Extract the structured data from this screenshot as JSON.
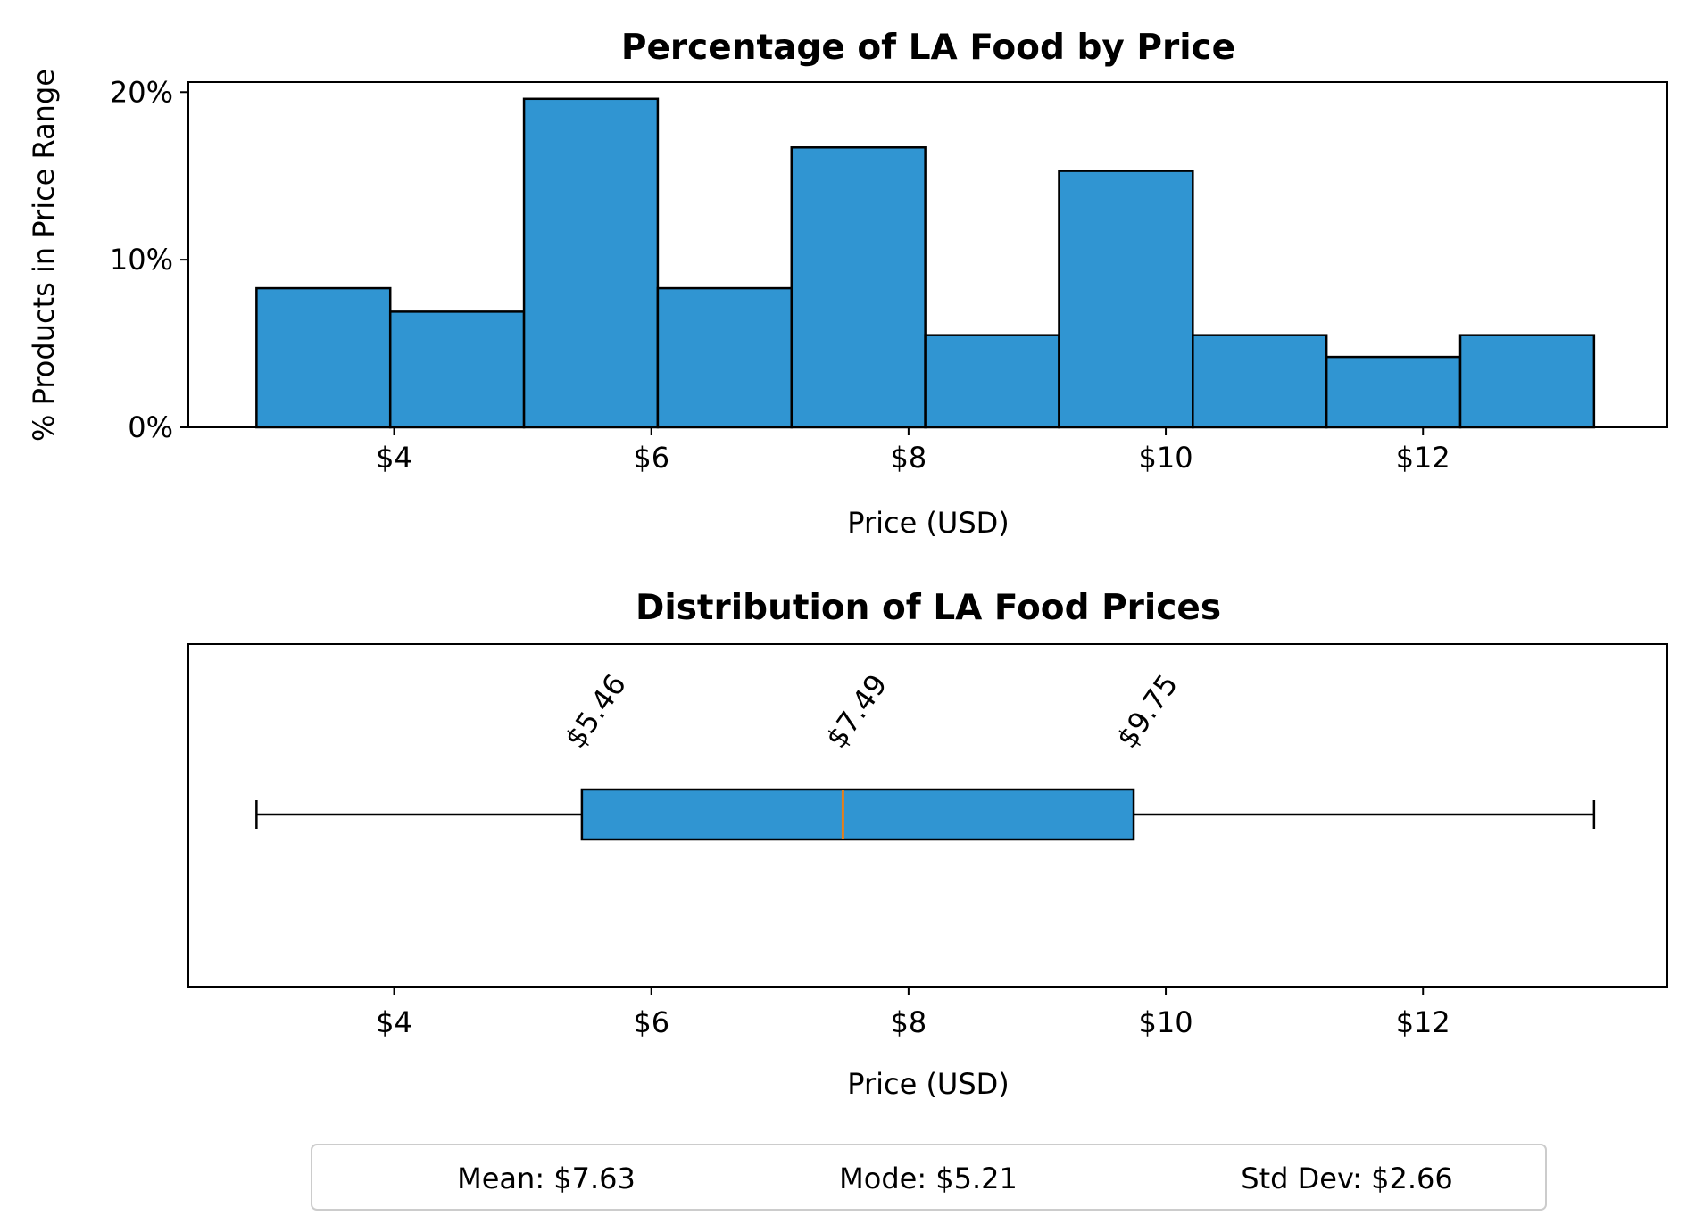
{
  "chart_data": [
    {
      "type": "bar",
      "title": "Percentage of LA Food by Price",
      "xlabel": "Price (USD)",
      "ylabel": "% Products in Price Range",
      "bin_edges": [
        2.93,
        3.97,
        5.01,
        6.05,
        7.09,
        8.13,
        9.17,
        10.21,
        11.25,
        12.29,
        13.33
      ],
      "values": [
        8.3,
        6.9,
        19.6,
        8.3,
        16.7,
        5.5,
        15.3,
        5.5,
        4.2,
        5.5
      ],
      "xlim": [
        2.4,
        13.9
      ],
      "ylim": [
        0,
        20.6
      ],
      "xticks": [
        4,
        6,
        8,
        10,
        12
      ],
      "xtick_labels": [
        "$4",
        "$6",
        "$8",
        "$10",
        "$12"
      ],
      "yticks": [
        0,
        10,
        20
      ],
      "ytick_labels": [
        "0%",
        "10%",
        "20%"
      ],
      "grid": false,
      "bar_color": "#3095d2",
      "edge_color": "#000000"
    },
    {
      "type": "box",
      "title": "Distribution of LA Food Prices",
      "xlabel": "Price (USD)",
      "min": 2.93,
      "q1": 5.46,
      "median": 7.49,
      "q3": 9.75,
      "max": 13.33,
      "quartile_labels": [
        "$5.46",
        "$7.49",
        "$9.75"
      ],
      "xlim": [
        2.4,
        13.9
      ],
      "xticks": [
        4,
        6,
        8,
        10,
        12
      ],
      "xtick_labels": [
        "$4",
        "$6",
        "$8",
        "$10",
        "$12"
      ],
      "box_color": "#3095d2",
      "median_color": "#e37f1c"
    }
  ],
  "stats": {
    "mean": "Mean: $7.63",
    "mode": "Mode: $5.21",
    "std_dev": "Std Dev: $2.66"
  }
}
